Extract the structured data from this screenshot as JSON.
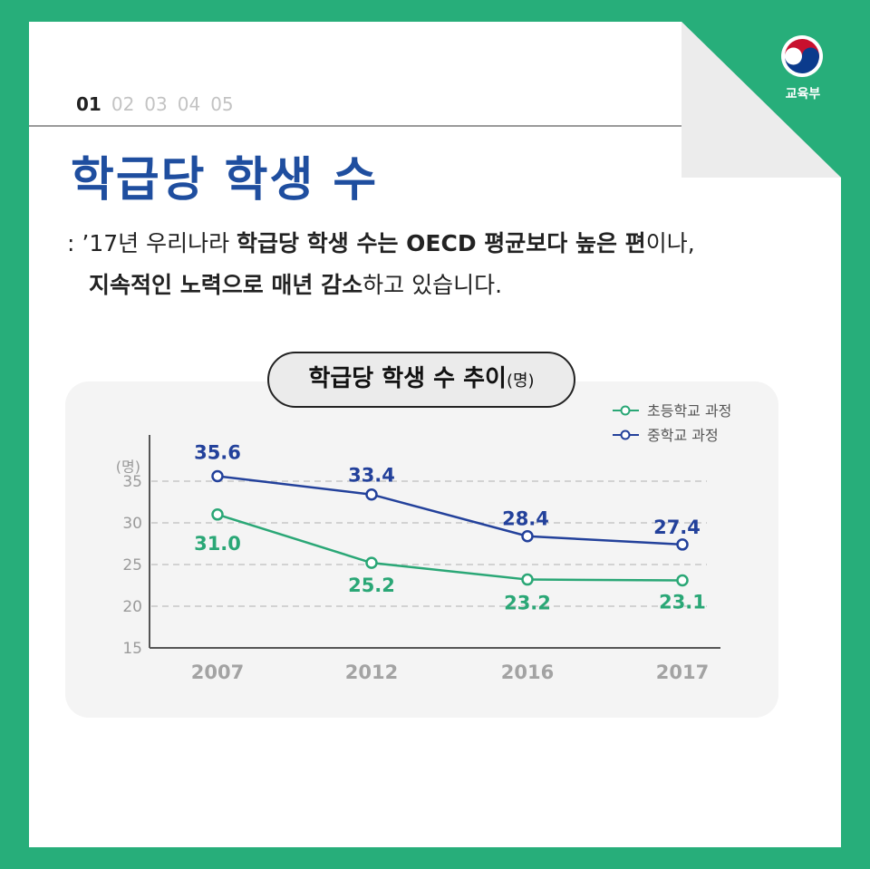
{
  "brand": {
    "name": "교육부"
  },
  "pages": {
    "items": [
      "01",
      "02",
      "03",
      "04",
      "05"
    ],
    "active": 0
  },
  "title": "학급당 학생 수",
  "description": {
    "line1": {
      "a": ": ’17년 우리나라 ",
      "b": "학급당 학생 수는 OECD 평균보다 높은 편",
      "c": "이나,"
    },
    "line2": {
      "a": "지속적인 노력으로 매년 감소",
      "b": "하고 있습니다."
    }
  },
  "chart_title": {
    "main": "학급당 학생 수 추이",
    "unit": "(명)"
  },
  "colors": {
    "green": "#2aa776",
    "navy": "#23419b",
    "title": "#1f4e9f"
  },
  "chart_data": {
    "type": "line",
    "categories": [
      "2007",
      "2012",
      "2016",
      "2017"
    ],
    "ylabel": "(명)",
    "ylim": [
      15,
      37
    ],
    "yticks": [
      15,
      20,
      25,
      30,
      35
    ],
    "grid": true,
    "legend": "top-right",
    "series": [
      {
        "name": "초등학교 과정",
        "color": "#2aa776",
        "values": [
          31.0,
          25.2,
          23.2,
          23.1
        ],
        "labels": [
          "31.0",
          "25.2",
          "23.2",
          "23.1"
        ]
      },
      {
        "name": "중학교 과정",
        "color": "#23419b",
        "values": [
          35.6,
          33.4,
          28.4,
          27.4
        ],
        "labels": [
          "35.6",
          "33.4",
          "28.4",
          "27.4"
        ]
      }
    ]
  }
}
